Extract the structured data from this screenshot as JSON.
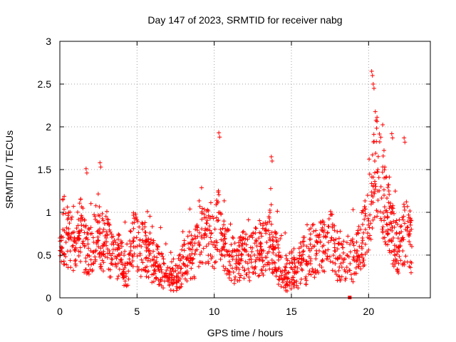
{
  "chart_data": {
    "type": "scatter",
    "title": "Day 147 of 2023, SRMTID for receiver nabg",
    "xlabel": "GPS time / hours",
    "ylabel": "SRMTID / TECUs",
    "xlim": [
      0,
      24
    ],
    "ylim": [
      0,
      3
    ],
    "xticks": [
      0,
      5,
      10,
      15,
      20
    ],
    "yticks": [
      0,
      0.5,
      1,
      1.5,
      2,
      2.5,
      3
    ],
    "xtick_labels": [
      "0",
      "5",
      "10",
      "15",
      "20"
    ],
    "ytick_labels": [
      "0",
      "0.5",
      "1",
      "1.5",
      "2",
      "2.5",
      "3"
    ],
    "grid": true,
    "marker": "plus",
    "series": [
      {
        "name": "SRMTID",
        "color": "#ff0000",
        "x": [
          0.0,
          0.2,
          0.4,
          0.6,
          0.8,
          1.0,
          1.2,
          1.4,
          1.6,
          1.8,
          2.0,
          2.2,
          2.4,
          2.6,
          2.8,
          3.0,
          3.2,
          3.4,
          3.6,
          3.8,
          4.0,
          4.2,
          4.4,
          4.6,
          4.8,
          5.0,
          5.2,
          5.4,
          5.6,
          5.8,
          6.0,
          6.2,
          6.4,
          6.6,
          6.8,
          7.0,
          7.2,
          7.4,
          7.6,
          7.8,
          8.0,
          8.2,
          8.4,
          8.6,
          8.8,
          9.0,
          9.2,
          9.4,
          9.6,
          9.8,
          10.0,
          10.2,
          10.4,
          10.6,
          10.8,
          11.0,
          11.2,
          11.4,
          11.6,
          11.8,
          12.0,
          12.2,
          12.4,
          12.6,
          12.8,
          13.0,
          13.2,
          13.4,
          13.6,
          13.8,
          14.0,
          14.2,
          14.4,
          14.6,
          14.8,
          15.0,
          15.2,
          15.4,
          15.6,
          15.8,
          16.0,
          16.2,
          16.4,
          16.6,
          16.8,
          17.0,
          17.2,
          17.4,
          17.6,
          17.8,
          18.0,
          18.2,
          18.4,
          18.6,
          18.8,
          19.0,
          19.2,
          19.4,
          19.6,
          19.8,
          20.0,
          20.2,
          20.4,
          20.6,
          20.8,
          21.0,
          21.2,
          21.4,
          21.6,
          21.8,
          22.0,
          22.2,
          22.4,
          22.6,
          22.8
        ],
        "y": [
          0.7,
          0.8,
          0.65,
          0.75,
          0.6,
          0.55,
          0.7,
          0.85,
          0.6,
          0.5,
          0.55,
          0.65,
          0.9,
          0.75,
          0.6,
          0.7,
          0.55,
          0.45,
          0.4,
          0.5,
          0.45,
          0.35,
          0.4,
          0.55,
          0.7,
          0.6,
          0.5,
          0.65,
          0.55,
          0.5,
          0.45,
          0.4,
          0.35,
          0.3,
          0.25,
          0.2,
          0.18,
          0.2,
          0.25,
          0.3,
          0.4,
          0.45,
          0.5,
          0.45,
          0.55,
          0.65,
          0.7,
          0.75,
          0.8,
          0.75,
          0.65,
          0.9,
          0.8,
          0.6,
          0.55,
          0.5,
          0.45,
          0.4,
          0.45,
          0.5,
          0.55,
          0.5,
          0.45,
          0.5,
          0.55,
          0.6,
          0.55,
          0.65,
          0.7,
          0.6,
          0.5,
          0.35,
          0.3,
          0.25,
          0.3,
          0.35,
          0.3,
          0.35,
          0.4,
          0.45,
          0.4,
          0.55,
          0.6,
          0.5,
          0.55,
          0.6,
          0.55,
          0.65,
          0.7,
          0.55,
          0.45,
          0.4,
          0.45,
          0.5,
          0.4,
          0.45,
          0.55,
          0.6,
          0.7,
          0.8,
          0.9,
          1.2,
          1.6,
          1.5,
          1.3,
          1.2,
          1.0,
          0.8,
          0.7,
          0.6,
          0.55,
          0.7,
          0.8,
          0.75,
          0.6
        ]
      }
    ],
    "annotations": [
      {
        "x": 10.3,
        "y": 1.93
      },
      {
        "x": 13.7,
        "y": 1.65
      },
      {
        "x": 20.2,
        "y": 2.65
      },
      {
        "x": 20.3,
        "y": 2.5
      },
      {
        "x": 21.5,
        "y": 1.92
      },
      {
        "x": 22.3,
        "y": 1.87
      },
      {
        "x": 2.6,
        "y": 1.58
      },
      {
        "x": 1.7,
        "y": 1.51
      }
    ],
    "extra_marker": {
      "x": 18.8,
      "y": 0.0,
      "shape": "square"
    }
  }
}
